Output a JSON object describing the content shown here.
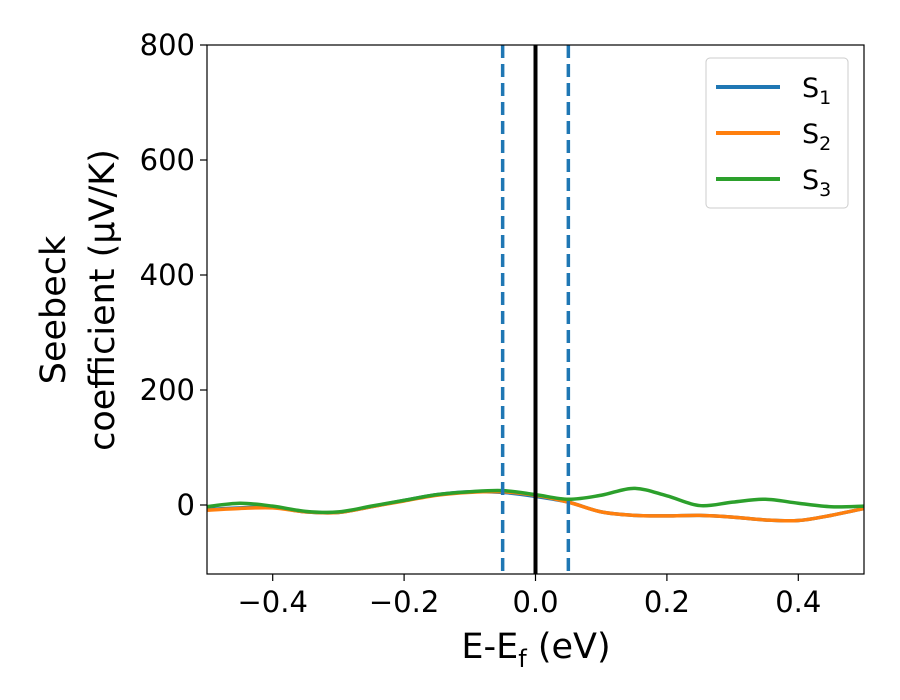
{
  "chart_data": {
    "type": "line",
    "xlabel": "E-E",
    "xlabel_sub": "f",
    "xlabel_unit": " (eV)",
    "ylabel_line1": "Seebeck",
    "ylabel_line2": "coefficient  (μV/K)",
    "xlim": [
      -0.5,
      0.5
    ],
    "ylim": [
      -120,
      800
    ],
    "xticks": [
      -0.4,
      -0.2,
      0.0,
      0.2,
      0.4
    ],
    "xtick_labels": [
      "−0.4",
      "−0.2",
      "0.0",
      "0.2",
      "0.4"
    ],
    "yticks": [
      0,
      200,
      400,
      600,
      800
    ],
    "ytick_labels": [
      "0",
      "200",
      "400",
      "600",
      "800"
    ],
    "grid": false,
    "legend_position": "top-right",
    "vlines": [
      {
        "x": 0.0,
        "style": "solid",
        "color": "#000000"
      },
      {
        "x": -0.05,
        "style": "dashed",
        "color": "#1f77b4"
      },
      {
        "x": 0.05,
        "style": "dashed",
        "color": "#1f77b4"
      }
    ],
    "x": [
      -0.5,
      -0.45,
      -0.4,
      -0.35,
      -0.3,
      -0.25,
      -0.2,
      -0.15,
      -0.1,
      -0.05,
      0.0,
      0.05,
      0.1,
      0.15,
      0.2,
      0.25,
      0.3,
      0.35,
      0.4,
      0.45,
      0.5
    ],
    "series": [
      {
        "name": "S",
        "sub": "1",
        "color": "#1f77b4",
        "values": [
          -8,
          -5,
          -4,
          -12,
          -13,
          -3,
          8,
          18,
          23,
          22,
          15,
          5,
          -12,
          -18,
          -19,
          -18,
          -21,
          -26,
          -27,
          -18,
          -6
        ]
      },
      {
        "name": "S",
        "sub": "2",
        "color": "#ff7f0e",
        "values": [
          -9,
          -6,
          -5,
          -12,
          -13,
          -3,
          7,
          17,
          22,
          23,
          17,
          5,
          -12,
          -18,
          -19,
          -18,
          -21,
          -26,
          -27,
          -18,
          -6
        ]
      },
      {
        "name": "S",
        "sub": "3",
        "color": "#2ca02c",
        "values": [
          -3,
          3,
          -2,
          -11,
          -12,
          -2,
          8,
          18,
          23,
          25,
          18,
          10,
          17,
          29,
          16,
          -1,
          5,
          10,
          3,
          -3,
          -2
        ]
      }
    ]
  }
}
